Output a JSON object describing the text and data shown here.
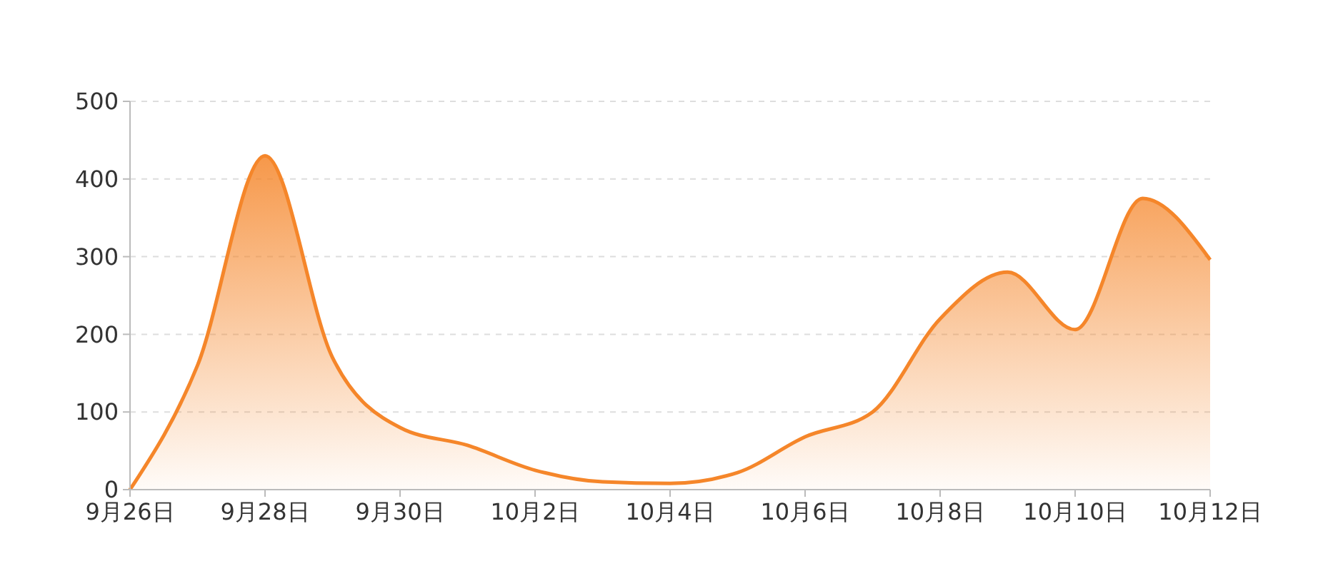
{
  "chart_data": {
    "type": "area",
    "categories": [
      "9月26日",
      null,
      "9月28日",
      null,
      "9月30日",
      null,
      "10月2日",
      null,
      "10月4日",
      null,
      "10月6日",
      null,
      "10月8日",
      null,
      "10月10日",
      null,
      "10月12日"
    ],
    "values": [
      0,
      160,
      430,
      170,
      80,
      57,
      25,
      10,
      8,
      22,
      68,
      100,
      220,
      280,
      206,
      375,
      296
    ],
    "color": "#f5862a",
    "ylim": [
      0,
      500
    ],
    "yticks": [
      0,
      100,
      200,
      300,
      400,
      500
    ],
    "grid": "y",
    "marker": "none"
  }
}
